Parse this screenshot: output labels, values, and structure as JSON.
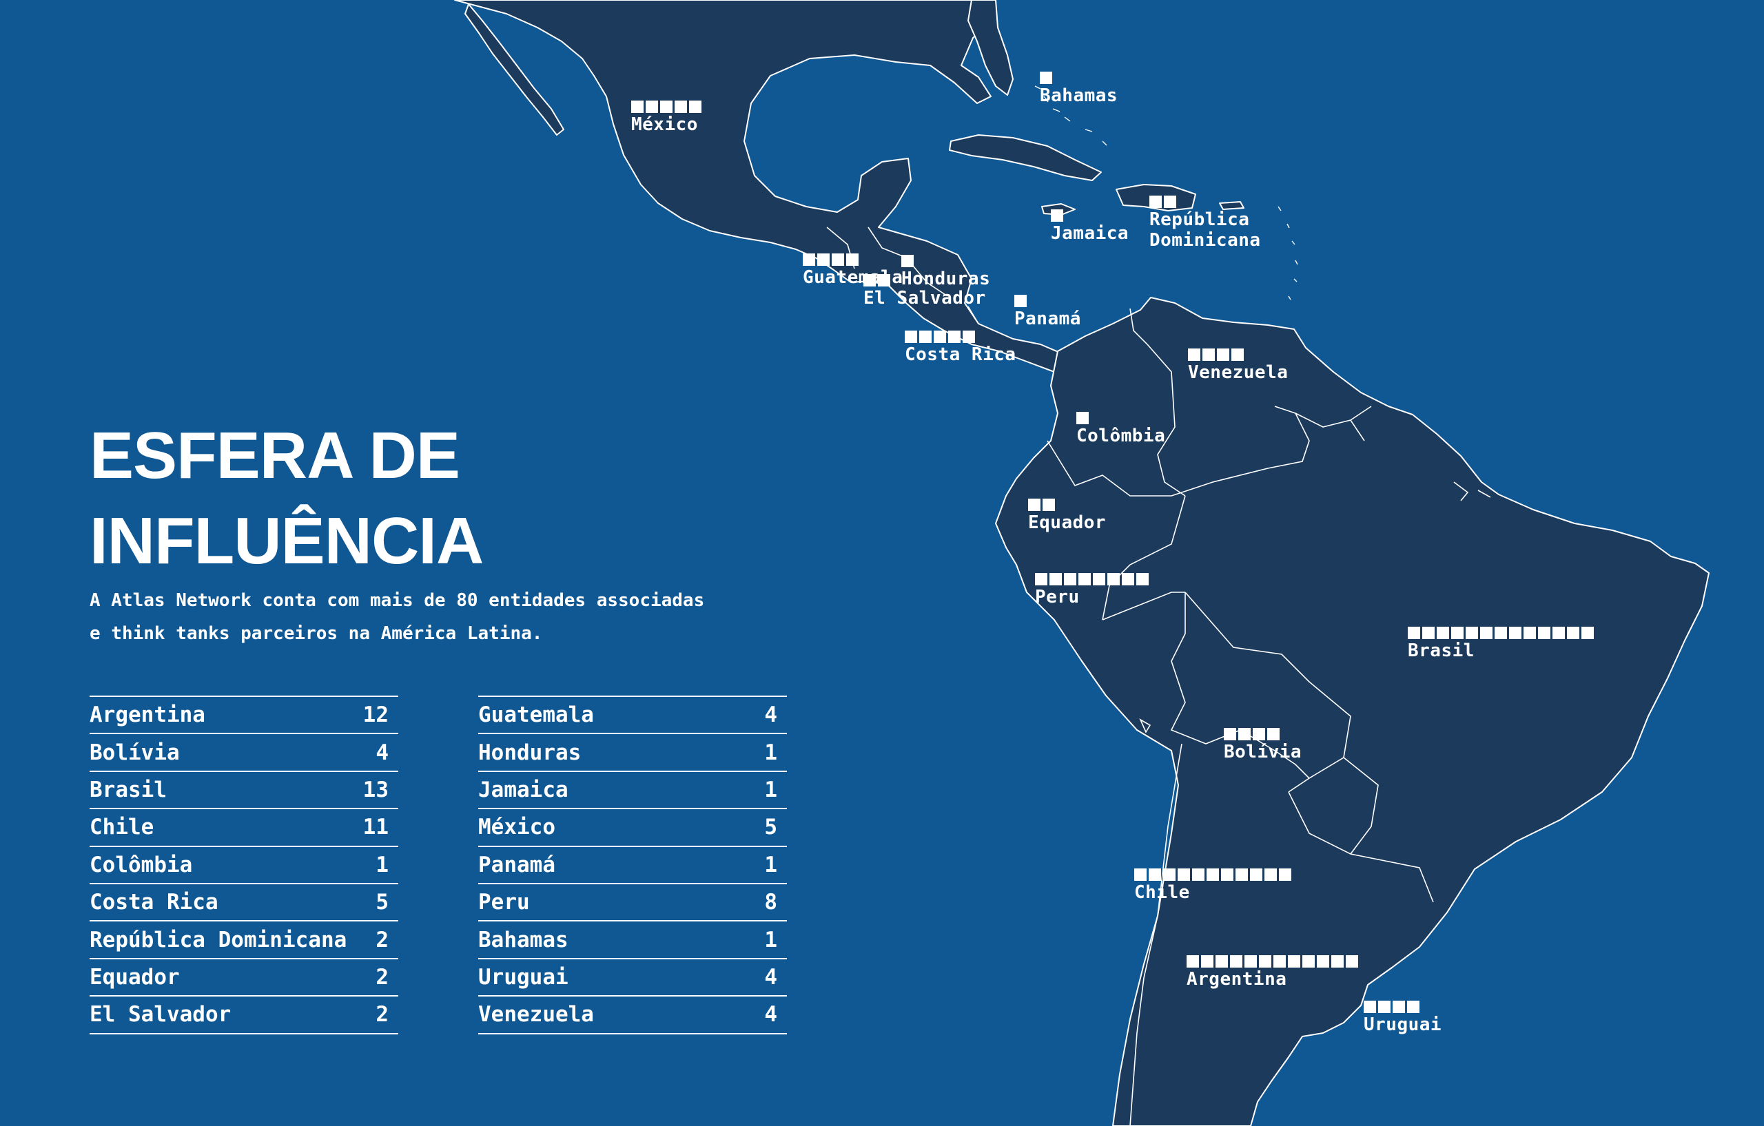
{
  "title": "ESFERA DE\nINFLUÊNCIA",
  "subtitle": "A Atlas Network conta com mais de 80 entidades associadas e think tanks parceiros na América Latina.",
  "colors": {
    "ocean": "#0f5894",
    "land": "#1c3a5c",
    "ink": "#ffffff"
  },
  "map_labels": [
    {
      "name": "México",
      "count": 5
    },
    {
      "name": "Bahamas",
      "count": 1
    },
    {
      "name": "Honduras",
      "count": 1
    },
    {
      "name": "Jamaica",
      "count": 1
    },
    {
      "name": "República\nDominicana",
      "count": 2
    },
    {
      "name": "Guatemala",
      "count": 4
    },
    {
      "name": "El Salvador",
      "count": 2
    },
    {
      "name": "Panamá",
      "count": 1
    },
    {
      "name": "Costa Rica",
      "count": 5
    },
    {
      "name": "Venezuela",
      "count": 4
    },
    {
      "name": "Colômbia",
      "count": 1
    },
    {
      "name": "Equador",
      "count": 2
    },
    {
      "name": "Peru",
      "count": 8
    },
    {
      "name": "Brasil",
      "count": 13
    },
    {
      "name": "Bolívia",
      "count": 4
    },
    {
      "name": "Chile",
      "count": 11
    },
    {
      "name": "Argentina",
      "count": 12
    },
    {
      "name": "Uruguai",
      "count": 4
    }
  ],
  "table_left": [
    {
      "country": "Argentina",
      "count": "12"
    },
    {
      "country": "Bolívia",
      "count": "4"
    },
    {
      "country": "Brasil",
      "count": "13"
    },
    {
      "country": "Chile",
      "count": "11"
    },
    {
      "country": "Colômbia",
      "count": "1"
    },
    {
      "country": "Costa Rica",
      "count": "5"
    },
    {
      "country": "República Dominicana",
      "count": "2"
    },
    {
      "country": "Equador",
      "count": "2"
    },
    {
      "country": "El Salvador",
      "count": "2"
    }
  ],
  "table_right": [
    {
      "country": "Guatemala",
      "count": "4"
    },
    {
      "country": "Honduras",
      "count": "1"
    },
    {
      "country": "Jamaica",
      "count": "1"
    },
    {
      "country": "México",
      "count": "5"
    },
    {
      "country": "Panamá",
      "count": "1"
    },
    {
      "country": "Peru",
      "count": "8"
    },
    {
      "country": "Bahamas",
      "count": "1"
    },
    {
      "country": "Uruguai",
      "count": "4"
    },
    {
      "country": "Venezuela",
      "count": "4"
    }
  ]
}
